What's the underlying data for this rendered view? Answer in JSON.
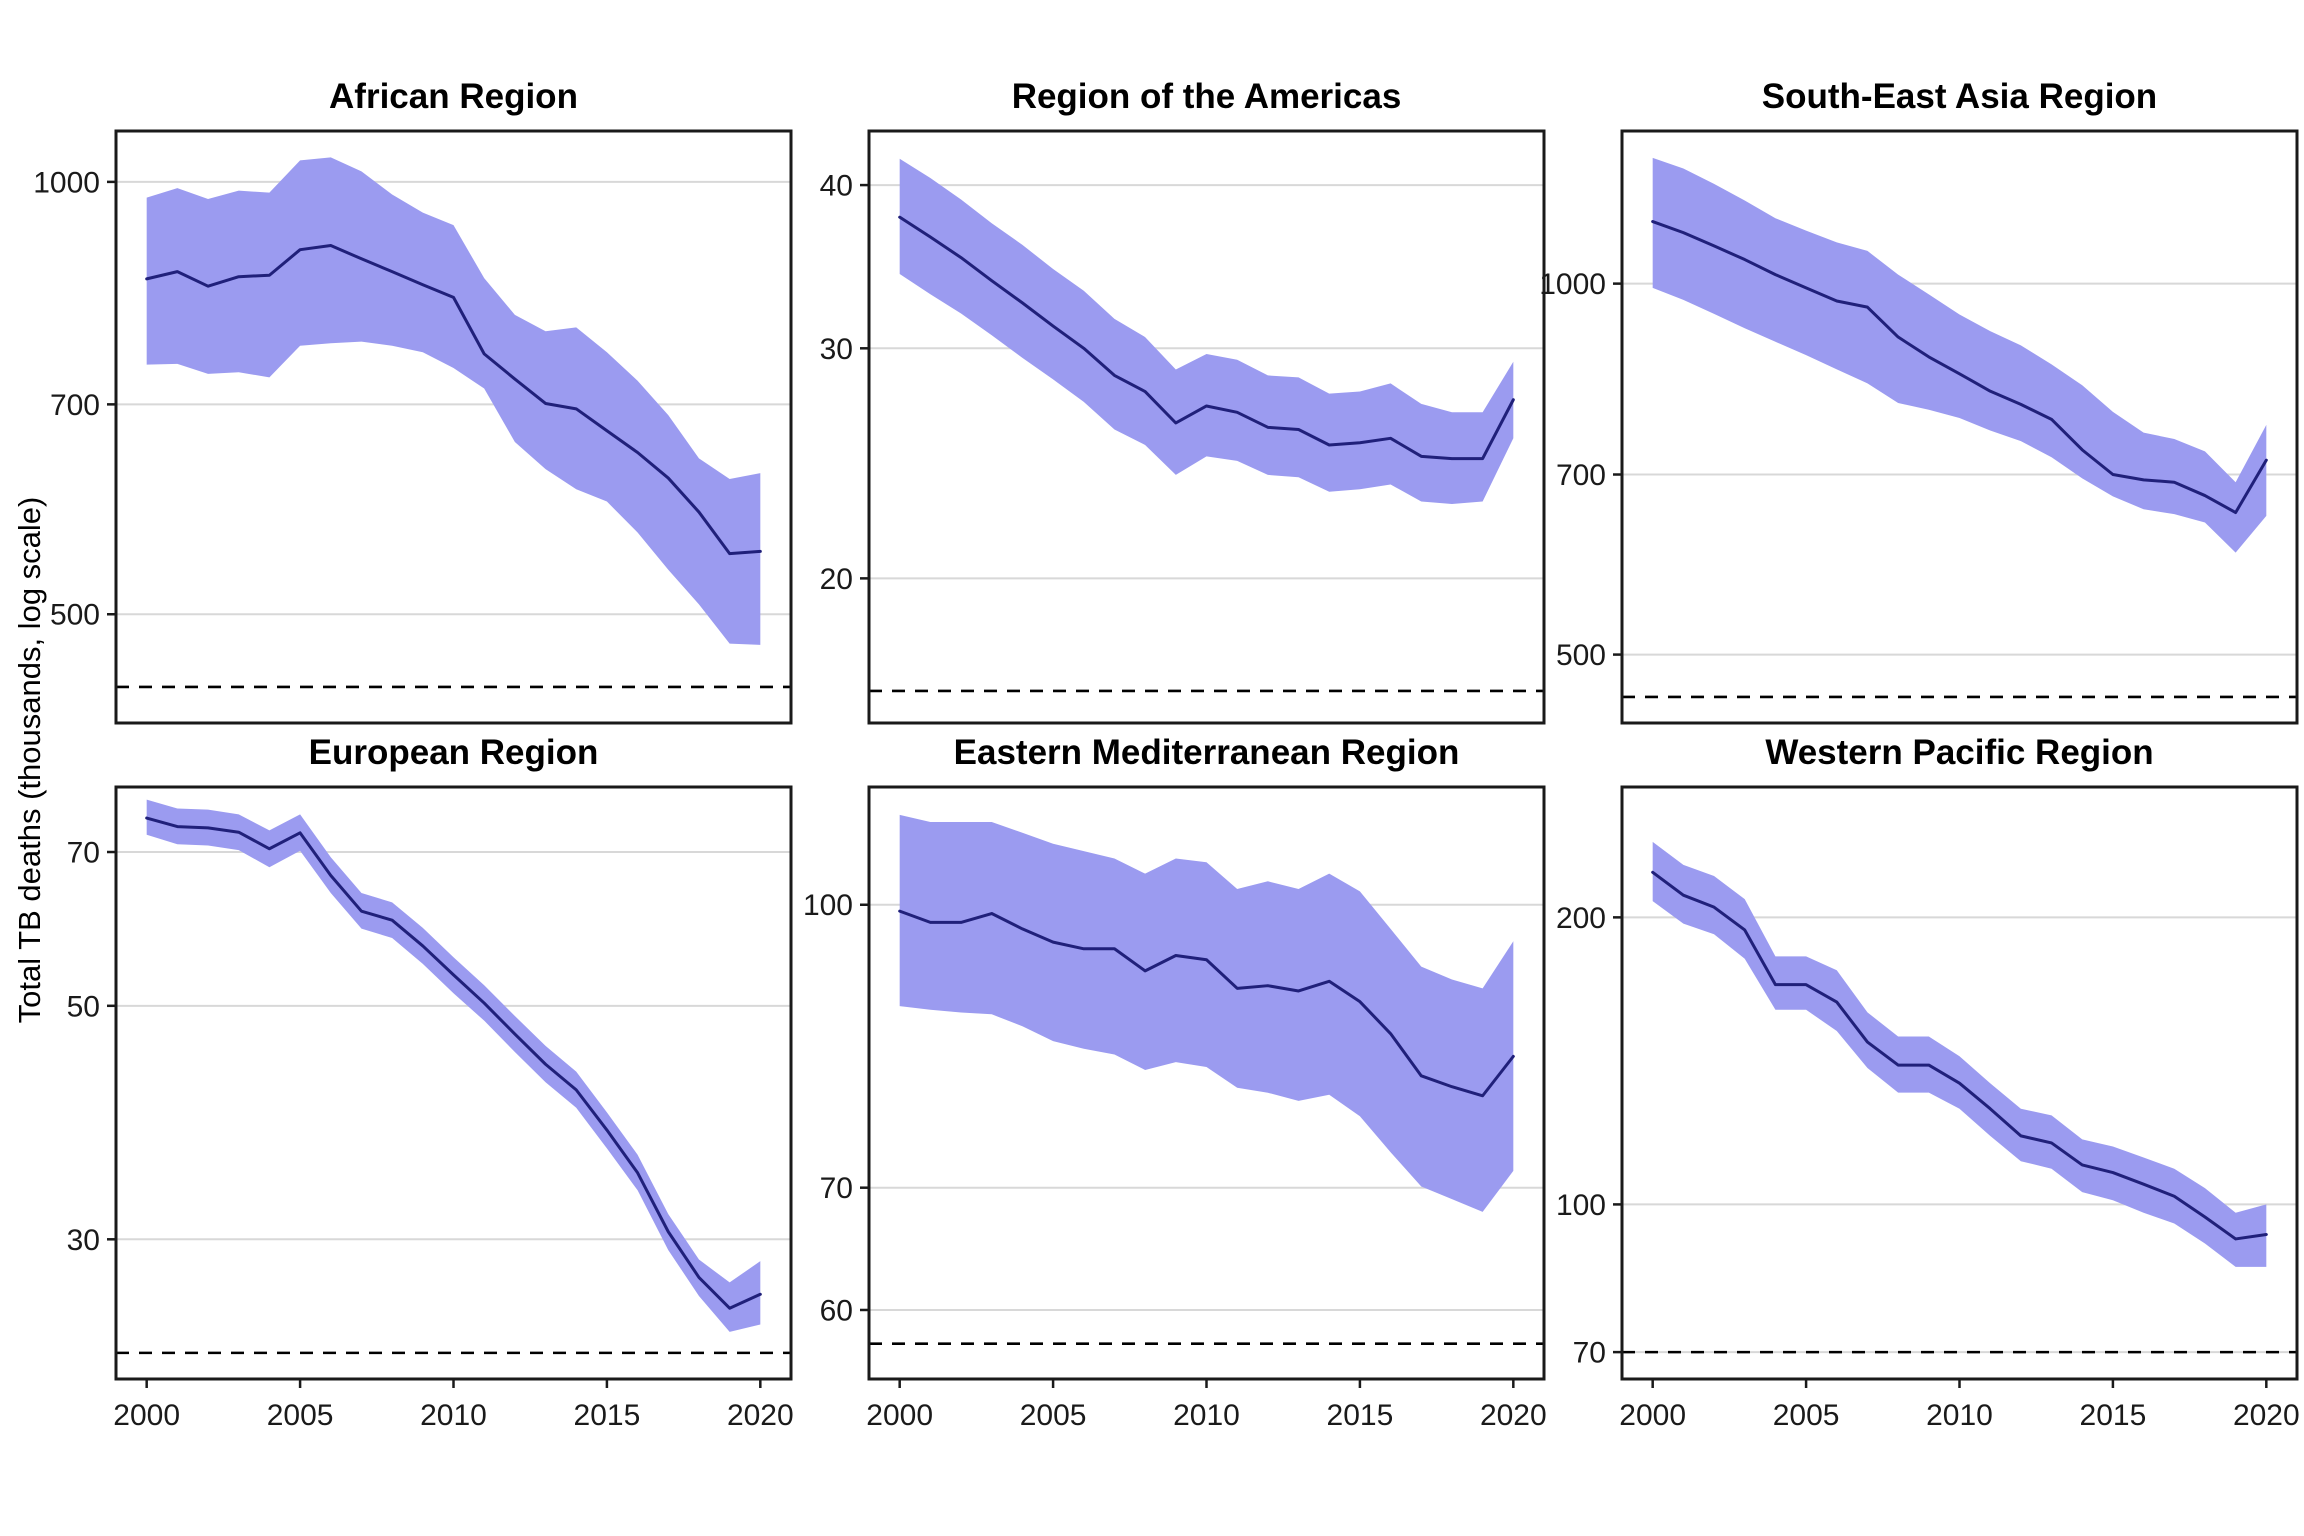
{
  "figure": {
    "ylabel": "Total TB deaths (thousands, log scale)",
    "background": "#ffffff"
  },
  "style": {
    "band_color": "#9b9bf0",
    "line_color": "#20207a",
    "grid_color": "#d8d8d8",
    "border_color": "#1a1a1a",
    "dashed_color": "#000000",
    "tick_color": "#1a1a1a"
  },
  "chart_data": {
    "type": "line",
    "x": [
      2000,
      2001,
      2002,
      2003,
      2004,
      2005,
      2006,
      2007,
      2008,
      2009,
      2010,
      2011,
      2012,
      2013,
      2014,
      2015,
      2016,
      2017,
      2018,
      2019,
      2020
    ],
    "x_ticks": [
      2000,
      2005,
      2010,
      2015,
      2020
    ],
    "xlim": [
      1999,
      2021
    ],
    "grid": "horizontal-only",
    "legend": "none",
    "dashed_line_meaning": "reference milestone level",
    "panels": [
      {
        "title": "African Region",
        "y_ticks": [
          1000,
          700,
          500
        ],
        "ylim": [
          420,
          1085
        ],
        "dashed_line": 445,
        "show_x_labels": false,
        "series": {
          "mid": [
            856,
            866,
            846,
            859,
            861,
            897,
            903,
            884,
            866,
            848,
            831,
            759,
            729,
            701,
            695,
            671,
            648,
            622,
            589,
            551,
            553
          ],
          "hi": [
            975,
            990,
            973,
            986,
            983,
            1035,
            1040,
            1017,
            980,
            952,
            933,
            857,
            808,
            787,
            792,
            761,
            727,
            688,
            642,
            621,
            627
          ],
          "lo": [
            746,
            747,
            735,
            737,
            731,
            769,
            772,
            774,
            769,
            761,
            742,
            718,
            659,
            631,
            611,
            599,
            570,
            537,
            508,
            477,
            476
          ]
        }
      },
      {
        "title": "Region of the Americas",
        "y_ticks": [
          40,
          30,
          20
        ],
        "ylim": [
          15.5,
          44
        ],
        "dashed_line": 16.4,
        "show_x_labels": false,
        "series": {
          "mid": [
            37.8,
            36.5,
            35.2,
            33.8,
            32.5,
            31.2,
            30.0,
            28.6,
            27.8,
            26.3,
            27.1,
            26.8,
            26.1,
            26.0,
            25.3,
            25.4,
            25.6,
            24.8,
            24.7,
            24.7,
            27.4
          ],
          "hi": [
            41.9,
            40.5,
            39.0,
            37.4,
            36.0,
            34.5,
            33.2,
            31.6,
            30.6,
            28.9,
            29.7,
            29.4,
            28.6,
            28.5,
            27.7,
            27.8,
            28.2,
            27.2,
            26.8,
            26.8,
            29.3
          ],
          "lo": [
            34.2,
            33.0,
            31.9,
            30.7,
            29.5,
            28.4,
            27.3,
            26.0,
            25.3,
            24.0,
            24.8,
            24.6,
            24.0,
            23.9,
            23.3,
            23.4,
            23.6,
            22.9,
            22.8,
            22.9,
            25.6
          ]
        }
      },
      {
        "title": "South-East Asia Region",
        "y_ticks": [
          1000,
          700,
          500
        ],
        "ylim": [
          440,
          1330
        ],
        "dashed_line": 462,
        "show_x_labels": false,
        "series": {
          "mid": [
            1123,
            1100,
            1073,
            1046,
            1017,
            992,
            968,
            957,
            905,
            872,
            845,
            818,
            798,
            776,
            733,
            700,
            693,
            690,
            673,
            652,
            719
          ],
          "hi": [
            1265,
            1240,
            1205,
            1168,
            1130,
            1104,
            1080,
            1063,
            1017,
            980,
            944,
            915,
            891,
            860,
            827,
            787,
            757,
            748,
            731,
            690,
            768
          ],
          "lo": [
            992,
            970,
            945,
            920,
            897,
            875,
            852,
            830,
            800,
            790,
            778,
            760,
            745,
            723,
            695,
            672,
            656,
            650,
            640,
            605,
            648
          ]
        }
      },
      {
        "title": "European Region",
        "y_ticks": [
          70,
          50,
          30
        ],
        "ylim": [
          22.1,
          80.7
        ],
        "dashed_line": 23.4,
        "show_x_labels": true,
        "series": {
          "mid": [
            75.4,
            74.0,
            73.8,
            73.1,
            70.5,
            73.0,
            66.5,
            61.5,
            60.3,
            57.0,
            53.5,
            50.3,
            47.0,
            44.0,
            41.6,
            38.1,
            34.7,
            30.5,
            27.6,
            25.8,
            26.6
          ],
          "hi": [
            78.5,
            77.0,
            76.8,
            76.0,
            73.4,
            76.0,
            69.2,
            64.0,
            62.7,
            59.3,
            55.6,
            52.3,
            48.9,
            45.8,
            43.3,
            39.6,
            36.1,
            31.7,
            28.7,
            27.3,
            28.6
          ],
          "lo": [
            72.7,
            71.2,
            71.0,
            70.3,
            67.7,
            70.2,
            64.0,
            59.2,
            58.0,
            54.8,
            51.4,
            48.4,
            45.2,
            42.3,
            40.0,
            36.6,
            33.4,
            29.3,
            26.5,
            24.5,
            24.9
          ]
        }
      },
      {
        "title": "Eastern Mediterranean Region",
        "y_ticks": [
          100,
          70,
          60
        ],
        "ylim": [
          55,
          116
        ],
        "dashed_line": 57.5,
        "show_x_labels": true,
        "series": {
          "mid": [
            99.2,
            97.8,
            97.8,
            98.9,
            97.0,
            95.4,
            94.6,
            94.6,
            92.0,
            93.8,
            93.3,
            90.0,
            90.3,
            89.7,
            90.8,
            88.5,
            85.0,
            80.6,
            79.5,
            78.6,
            82.6
          ],
          "hi": [
            112,
            111,
            111,
            111,
            109.5,
            108,
            107,
            106,
            104,
            106,
            105.5,
            102,
            103,
            102,
            104,
            101.7,
            97,
            92.5,
            91,
            90,
            95.5
          ],
          "lo": [
            88,
            87.6,
            87.3,
            87.1,
            85.8,
            84.2,
            83.4,
            82.8,
            81.2,
            82,
            81.5,
            79.4,
            78.9,
            78.1,
            78.7,
            76.6,
            73.2,
            70.1,
            69,
            67.9,
            71.5
          ]
        }
      },
      {
        "title": "Western Pacific Region",
        "y_ticks": [
          200,
          100,
          70
        ],
        "ylim": [
          65.6,
          274
        ],
        "dashed_line": 70,
        "show_x_labels": true,
        "series": {
          "mid": [
            223,
            211,
            205,
            194,
            170,
            170,
            163,
            148,
            140,
            140,
            134,
            126,
            118,
            116,
            110,
            108,
            105,
            102,
            97,
            92,
            93
          ],
          "hi": [
            240,
            227,
            221,
            209,
            182,
            182,
            176,
            159,
            150,
            150,
            143,
            134,
            126,
            124,
            117,
            115,
            112,
            109,
            104,
            98,
            100
          ],
          "lo": [
            208,
            197,
            192,
            181,
            160,
            160,
            152,
            139,
            131,
            131,
            126,
            118,
            111,
            109,
            103,
            101,
            98,
            95.5,
            91,
            86,
            86
          ]
        }
      }
    ]
  }
}
